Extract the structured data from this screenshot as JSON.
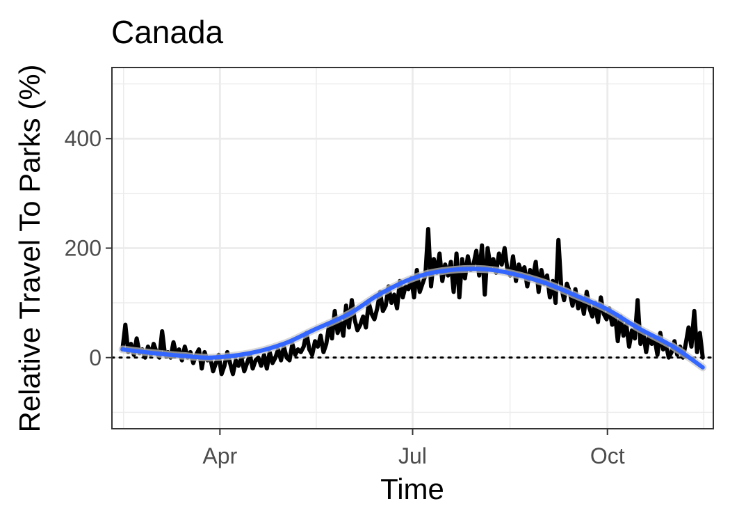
{
  "chart_data": {
    "type": "line",
    "title": "Canada",
    "xlabel": "Time",
    "ylabel": "Relative Travel To Parks (%)",
    "x_start": "2020-02-15",
    "x_end": "2020-11-15",
    "xlim": [
      "2020-02-10",
      "2020-11-20"
    ],
    "ylim": [
      -130,
      530
    ],
    "y_ticks": [
      0,
      200,
      400
    ],
    "x_ticks": [
      {
        "date": "2020-04-01",
        "label": "Apr"
      },
      {
        "date": "2020-07-01",
        "label": "Jul"
      },
      {
        "date": "2020-10-01",
        "label": "Oct"
      }
    ],
    "reference_line": {
      "y": 0,
      "style": "dotted"
    },
    "grid": true,
    "legend": "none",
    "colors": {
      "raw": "#000000",
      "smooth": "#3366FF",
      "band": "#c8c8c8",
      "grid": "#ebebeb",
      "panel_border": "#333333"
    },
    "series": [
      {
        "type": "line",
        "values": [
          15,
          60,
          10,
          25,
          5,
          35,
          8,
          15,
          0,
          20,
          5,
          25,
          10,
          0,
          48,
          5,
          10,
          0,
          28,
          5,
          15,
          -5,
          20,
          0,
          10,
          -10,
          5,
          15,
          -20,
          10,
          -5,
          0,
          -25,
          -10,
          5,
          -30,
          -15,
          10,
          -10,
          -30,
          -5,
          -15,
          0,
          -25,
          -10,
          5,
          -20,
          -5,
          0,
          -15,
          5,
          -20,
          10,
          -10,
          0,
          15,
          -5,
          20,
          0,
          -5,
          25,
          5,
          15,
          10,
          20,
          45,
          15,
          5,
          30,
          20,
          40,
          10,
          25,
          60,
          35,
          85,
          45,
          65,
          40,
          95,
          55,
          105,
          70,
          50,
          60,
          75,
          55,
          100,
          80,
          70,
          90,
          120,
          85,
          95,
          130,
          100,
          115,
          90,
          140,
          110,
          130,
          125,
          145,
          110,
          160,
          120,
          135,
          150,
          235,
          130,
          180,
          155,
          190,
          140,
          170,
          150,
          175,
          120,
          190,
          110,
          180,
          145,
          185,
          160,
          170,
          195,
          150,
          205,
          115,
          200,
          165,
          180,
          155,
          190,
          170,
          200,
          160,
          150,
          185,
          140,
          170,
          155,
          165,
          130,
          160,
          145,
          175,
          120,
          160,
          135,
          150,
          110,
          140,
          100,
          215,
          130,
          105,
          135,
          120,
          95,
          125,
          90,
          110,
          80,
          120,
          90,
          75,
          100,
          65,
          110,
          80,
          70,
          90,
          60,
          80,
          30,
          75,
          40,
          60,
          20,
          50,
          35,
          105,
          25,
          45,
          10,
          40,
          25,
          35,
          5,
          45,
          15,
          25,
          0,
          10,
          30,
          5,
          20,
          0,
          25,
          55,
          20,
          85,
          10,
          45,
          0
        ]
      },
      {
        "type": "smooth",
        "x": [
          "2020-02-15",
          "2020-03-01",
          "2020-03-15",
          "2020-03-28",
          "2020-04-15",
          "2020-05-01",
          "2020-05-15",
          "2020-06-01",
          "2020-06-15",
          "2020-07-01",
          "2020-07-15",
          "2020-08-01",
          "2020-08-15",
          "2020-09-01",
          "2020-09-15",
          "2020-10-01",
          "2020-10-15",
          "2020-11-01",
          "2020-11-15"
        ],
        "values": [
          15,
          8,
          3,
          0,
          8,
          25,
          50,
          80,
          115,
          145,
          158,
          162,
          155,
          137,
          115,
          88,
          55,
          20,
          -18
        ]
      }
    ]
  }
}
